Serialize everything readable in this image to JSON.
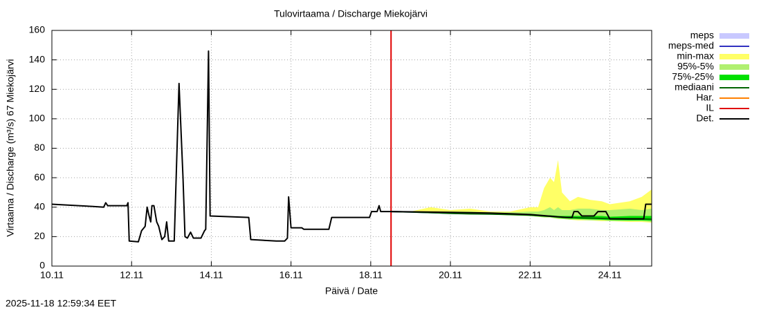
{
  "chart_data": {
    "type": "line",
    "title": "Tulovirtaama / Discharge  Miekojärvi",
    "y_label": "Virtaama / Discharge (m³/s)  67 Miekojärvi",
    "x_label": "Päivä / Date",
    "timestamp": "2025-11-18 12:59:34 EET",
    "xlim": [
      10,
      25.05
    ],
    "ylim": [
      0,
      160
    ],
    "xticks": [
      {
        "value": 10,
        "label": "10.11"
      },
      {
        "value": 12,
        "label": "12.11"
      },
      {
        "value": 14,
        "label": "14.11"
      },
      {
        "value": 16,
        "label": "16.11"
      },
      {
        "value": 18,
        "label": "18.11"
      },
      {
        "value": 20,
        "label": "20.11"
      },
      {
        "value": 22,
        "label": "22.11"
      },
      {
        "value": 24,
        "label": "24.11"
      }
    ],
    "yticks": [
      0,
      20,
      40,
      60,
      80,
      100,
      120,
      140,
      160
    ],
    "grid": true,
    "legend": "right",
    "series": [
      {
        "name": "meps",
        "kind": "band",
        "color": "#c8c8ff",
        "x": [
          18.51,
          19,
          19.5,
          20
        ],
        "low": [
          37,
          36.5,
          36,
          35.8
        ],
        "high": [
          37,
          37,
          36.5,
          36
        ]
      },
      {
        "name": "meps-med",
        "kind": "line",
        "color": "#3030c0",
        "x": [
          18.51,
          19,
          19.5,
          20
        ],
        "values": [
          37,
          36.7,
          36.3,
          35.9
        ]
      },
      {
        "name": "min-max",
        "kind": "band",
        "color": "#ffff66",
        "x": [
          18.51,
          19,
          19.5,
          20,
          20.5,
          21,
          21.5,
          22,
          22.2,
          22.35,
          22.5,
          22.6,
          22.7,
          22.8,
          23,
          23.2,
          23.5,
          23.8,
          24,
          24.5,
          24.8,
          25.05
        ],
        "low": [
          37,
          36.5,
          36,
          35.5,
          35,
          35,
          34.5,
          34,
          33.5,
          33,
          33,
          32.5,
          32,
          32,
          31.5,
          31,
          31,
          30.5,
          30.5,
          30,
          30,
          29.5
        ],
        "high": [
          37,
          37,
          40,
          38,
          39,
          37,
          37,
          40,
          40,
          53,
          60,
          57,
          72,
          50,
          44,
          47,
          45,
          44,
          42,
          44,
          47,
          52
        ]
      },
      {
        "name": "95%-5%",
        "kind": "band",
        "color": "#b0f070",
        "x": [
          18.51,
          19,
          19.5,
          20,
          20.5,
          21,
          21.5,
          22,
          22.2,
          22.35,
          22.5,
          22.6,
          22.7,
          22.8,
          23,
          23.2,
          23.5,
          23.8,
          24,
          24.5,
          24.8,
          25.05
        ],
        "low": [
          37,
          36.5,
          36,
          35.5,
          35,
          35,
          34.5,
          34,
          33.5,
          33,
          33,
          32.5,
          32,
          32,
          31.5,
          31.5,
          31,
          31,
          30.5,
          30.5,
          30.5,
          30
        ],
        "high": [
          37,
          37,
          37,
          37,
          37,
          36.5,
          36.5,
          37,
          37,
          38,
          40,
          38,
          40,
          38,
          38,
          39,
          39,
          38,
          38,
          39,
          38,
          39
        ]
      },
      {
        "name": "75%-25%",
        "kind": "band",
        "color": "#00e000",
        "x": [
          18.51,
          19,
          19.5,
          20,
          20.5,
          21,
          21.5,
          22,
          22.2,
          22.35,
          22.5,
          22.6,
          22.7,
          22.8,
          23,
          23.2,
          23.5,
          23.8,
          24,
          24.5,
          24.8,
          25.05
        ],
        "low": [
          37,
          36.5,
          36,
          35.5,
          35.2,
          35,
          34.6,
          34.2,
          33.8,
          33.5,
          33.3,
          33,
          32.8,
          32.5,
          32.2,
          32,
          31.8,
          31.5,
          31.3,
          31,
          31,
          30.8
        ],
        "high": [
          37,
          36.8,
          36.5,
          36,
          35.8,
          35.5,
          35.3,
          35,
          34.8,
          34.5,
          34.5,
          34.3,
          34,
          34,
          34,
          34,
          34,
          34,
          33.5,
          34,
          34,
          34
        ]
      },
      {
        "name": "mediaani",
        "kind": "line",
        "color": "#006400",
        "x": [
          18.51,
          19,
          19.5,
          20,
          20.5,
          21,
          21.5,
          22,
          22.2,
          22.35,
          22.5,
          22.6,
          22.7,
          22.8,
          23,
          23.2,
          23.5,
          23.8,
          24,
          24.5,
          24.8,
          25.05
        ],
        "values": [
          37,
          36.7,
          36.3,
          35.8,
          35.5,
          35.3,
          35,
          34.6,
          34.3,
          34,
          33.8,
          33.6,
          33.4,
          33.2,
          33,
          32.8,
          32.6,
          32.4,
          32.2,
          32,
          32,
          31.8
        ]
      },
      {
        "name": "Har.",
        "kind": "line",
        "color": "#ff8000",
        "x": [],
        "values": []
      },
      {
        "name": "IL",
        "kind": "line",
        "color": "#e00000",
        "x": [
          18.51,
          18.51
        ],
        "values": [
          0,
          160
        ]
      },
      {
        "name": "Det.",
        "kind": "line",
        "color": "#000000",
        "x": [
          10,
          11,
          11.3,
          11.35,
          11.4,
          11.88,
          11.91,
          11.94,
          12.17,
          12.25,
          12.34,
          12.39,
          12.44,
          12.48,
          12.51,
          12.56,
          12.63,
          12.68,
          12.76,
          12.83,
          12.88,
          12.93,
          13.07,
          13.19,
          13.29,
          13.34,
          13.4,
          13.48,
          13.55,
          13.74,
          13.83,
          13.86,
          13.93,
          13.97,
          14.94,
          14.99,
          15.63,
          15.84,
          15.91,
          15.94,
          16,
          16.27,
          16.32,
          16.95,
          17.02,
          17.97,
          18.02,
          18.16,
          18.21,
          18.25,
          18.51,
          20,
          21,
          22,
          22.9,
          23.05,
          23.1,
          23.2,
          23.3,
          23.6,
          23.7,
          23.9,
          24,
          24.85,
          24.9,
          25.05
        ],
        "values": [
          42,
          40.5,
          40,
          43,
          41,
          41,
          43,
          17,
          16.5,
          24,
          27,
          40,
          34,
          30,
          41,
          41,
          30,
          27,
          18,
          20,
          30,
          17,
          17,
          124,
          60,
          20,
          19,
          23,
          19,
          19,
          24,
          25,
          146,
          34,
          33,
          18,
          17,
          17,
          19,
          47,
          26,
          26,
          25,
          25,
          33,
          33,
          37,
          37,
          41,
          37,
          37,
          36.5,
          36,
          35,
          33,
          33,
          37,
          37,
          34,
          34,
          37,
          37,
          32,
          32,
          42,
          42
        ]
      }
    ]
  }
}
